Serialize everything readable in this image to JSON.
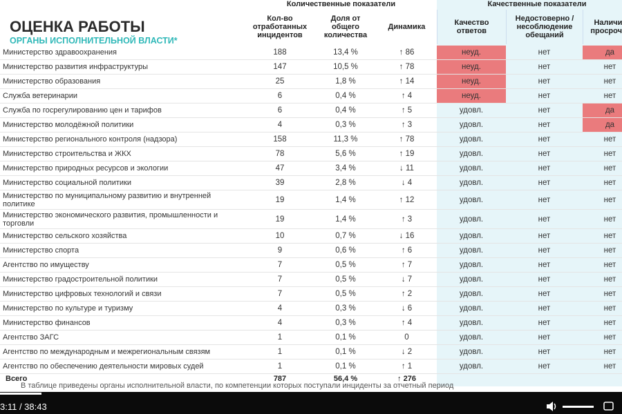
{
  "header": {
    "title": "ОЦЕНКА РАБОТЫ",
    "subtitle": "ОРГАНЫ ИСПОЛНИТЕЛЬНОЙ ВЛАСТИ*"
  },
  "table": {
    "group_headers": [
      "Количественные показатели",
      "Качественные показатели"
    ],
    "columns": [
      "Кол-во отработанных инцидентов",
      "Доля от общего количества",
      "Динамика",
      "Качество ответов",
      "Недостоверно / несоблюдение обещаний",
      "Наличие просрочек"
    ],
    "rows": [
      [
        "Министерство здравоохранения",
        "188",
        "13,4 %",
        "↑ 86",
        "неуд.",
        "нет",
        "да"
      ],
      [
        "Министерство развития инфраструктуры",
        "147",
        "10,5 %",
        "↑ 78",
        "неуд.",
        "нет",
        "нет"
      ],
      [
        "Министерство образования",
        "25",
        "1,8 %",
        "↑ 14",
        "неуд.",
        "нет",
        "нет"
      ],
      [
        "Служба ветеринарии",
        "6",
        "0,4 %",
        "↑ 4",
        "неуд.",
        "нет",
        "нет"
      ],
      [
        "Служба по госрегулированию цен и тарифов",
        "6",
        "0,4 %",
        "↑ 5",
        "удовл.",
        "нет",
        "да"
      ],
      [
        "Министерство молодёжной политики",
        "4",
        "0,3 %",
        "↑ 3",
        "удовл.",
        "нет",
        "да"
      ],
      [
        "Министерство  регионального контроля (надзора)",
        "158",
        "11,3 %",
        "↑ 78",
        "удовл.",
        "нет",
        "нет"
      ],
      [
        "Министерство строительства и ЖКХ",
        "78",
        "5,6 %",
        "↑ 19",
        "удовл.",
        "нет",
        "нет"
      ],
      [
        "Министерство природных ресурсов и экологии",
        "47",
        "3,4 %",
        "↓ 11",
        "удовл.",
        "нет",
        "нет"
      ],
      [
        "Министерство социальной политики",
        "39",
        "2,8 %",
        "↓ 4",
        "удовл.",
        "нет",
        "нет"
      ],
      [
        "Министерство по муниципальному развитию и внутренней политике",
        "19",
        "1,4 %",
        "↑ 12",
        "удовл.",
        "нет",
        "нет"
      ],
      [
        "Министерство экономического развития, промышленности и торговли",
        "19",
        "1,4 %",
        "↑ 3",
        "удовл.",
        "нет",
        "нет"
      ],
      [
        "Министерство сельского хозяйства",
        "10",
        "0,7 %",
        "↓ 16",
        "удовл.",
        "нет",
        "нет"
      ],
      [
        "Министерство спорта",
        "9",
        "0,6 %",
        "↑ 6",
        "удовл.",
        "нет",
        "нет"
      ],
      [
        "Агентство по имуществу",
        "7",
        "0,5 %",
        "↑ 7",
        "удовл.",
        "нет",
        "нет"
      ],
      [
        "Министерство градостроительной политики",
        "7",
        "0,5 %",
        "↓ 7",
        "удовл.",
        "нет",
        "нет"
      ],
      [
        "Министерство цифровых технологий и связи",
        "7",
        "0,5 %",
        "↑ 2",
        "удовл.",
        "нет",
        "нет"
      ],
      [
        "Министерство по культуре и туризму",
        "4",
        "0,3 %",
        "↓ 6",
        "удовл.",
        "нет",
        "нет"
      ],
      [
        "Министерство финансов",
        "4",
        "0,3 %",
        "↑ 4",
        "удовл.",
        "нет",
        "нет"
      ],
      [
        "Агентство ЗАГС",
        "1",
        "0,1 %",
        "0",
        "удовл.",
        "нет",
        "нет"
      ],
      [
        "Агентство по международным и межрегиональным связям",
        "1",
        "0,1 %",
        "↓ 2",
        "удовл.",
        "нет",
        "нет"
      ],
      [
        "Агентство по обеспечению деятельности мировых судей",
        "1",
        "0,1 %",
        "↑ 1",
        "удовл.",
        "нет",
        "нет"
      ]
    ],
    "total": [
      "Всего",
      "787",
      "56,4 %",
      "↑ 276"
    ]
  },
  "footnote": "В таблице приведены органы исполнительной власти, по компетенции которых поступали инциденты за отчетный период",
  "player": {
    "time": "3:11 / 38:43"
  }
}
